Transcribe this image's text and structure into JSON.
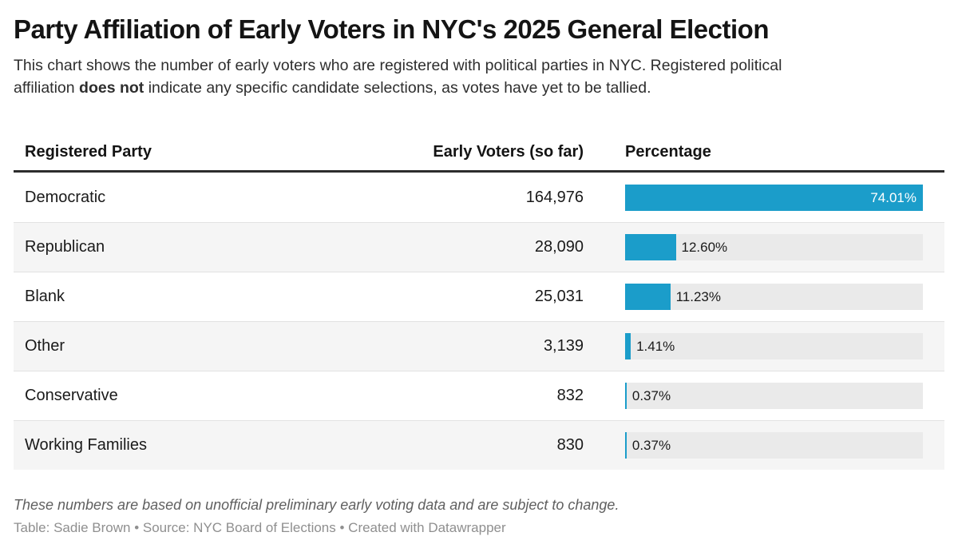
{
  "header": {
    "title": "Party Affiliation of Early Voters in NYC's 2025 General Election",
    "subtitle_line1": "This chart shows the number of early voters who are registered with political parties in NYC. Registered political",
    "subtitle_line2_pre": "affiliation ",
    "subtitle_bold": "does not",
    "subtitle_line2_post": " indicate any specific candidate selections, as votes have yet to be tallied."
  },
  "table": {
    "columns": {
      "party": "Registered Party",
      "voters": "Early Voters (so far)",
      "percentage": "Percentage"
    },
    "rows": [
      {
        "party": "Democratic",
        "voters": "164,976",
        "pct": 74.01,
        "pct_label": "74.01%"
      },
      {
        "party": "Republican",
        "voters": "28,090",
        "pct": 12.6,
        "pct_label": "12.60%"
      },
      {
        "party": "Blank",
        "voters": "25,031",
        "pct": 11.23,
        "pct_label": "11.23%"
      },
      {
        "party": "Other",
        "voters": "3,139",
        "pct": 1.41,
        "pct_label": "1.41%"
      },
      {
        "party": "Conservative",
        "voters": "832",
        "pct": 0.37,
        "pct_label": "0.37%"
      },
      {
        "party": "Working Families",
        "voters": "830",
        "pct": 0.37,
        "pct_label": "0.37%"
      }
    ]
  },
  "footer": {
    "note": "These numbers are based on unofficial preliminary early voting data and are subject to change.",
    "credit": "Table: Sadie Brown • Source: NYC Board of Elections • Created with Datawrapper"
  },
  "colors": {
    "bar": "#1b9dca",
    "bar_track": "#eaeaea",
    "row_stripe": "#f5f5f5",
    "header_border": "#2d2d2d"
  },
  "chart_data": {
    "type": "table",
    "title": "Party Affiliation of Early Voters in NYC's 2025 General Election",
    "columns": [
      "Registered Party",
      "Early Voters (so far)",
      "Percentage"
    ],
    "categories": [
      "Democratic",
      "Republican",
      "Blank",
      "Other",
      "Conservative",
      "Working Families"
    ],
    "series": [
      {
        "name": "Early Voters (so far)",
        "values": [
          164976,
          28090,
          25031,
          3139,
          832,
          830
        ]
      },
      {
        "name": "Percentage",
        "values": [
          74.01,
          12.6,
          11.23,
          1.41,
          0.37,
          0.37
        ]
      }
    ],
    "bar_color": "#1b9dca",
    "bars_scaled_to_max": true,
    "max_bar_value_pct": 74.01,
    "legend": "none",
    "grid": "off"
  }
}
